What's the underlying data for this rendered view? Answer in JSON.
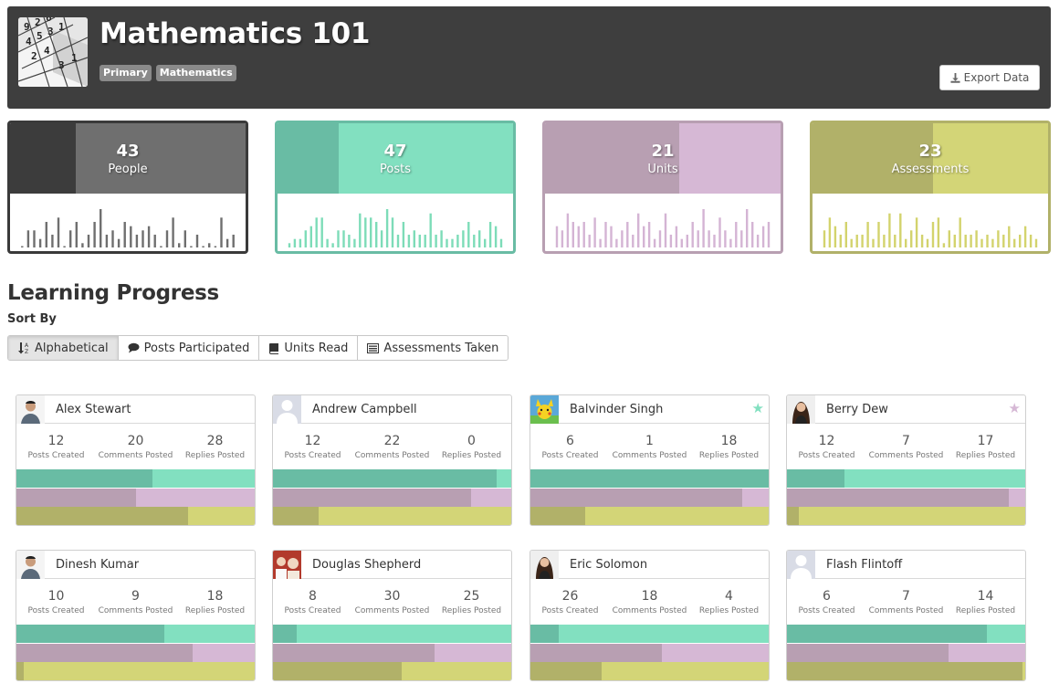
{
  "course": {
    "title": "Mathematics 101",
    "tags": [
      "Primary",
      "Mathematics"
    ],
    "logo_digits": [
      "9",
      "2",
      "6",
      "4",
      "5",
      "3",
      "1",
      "2",
      "4",
      "3",
      "1"
    ]
  },
  "export_label": "Export Data",
  "stats": [
    {
      "value": "43",
      "label": "People",
      "dark": "#3c3c3c",
      "light": "#6f6f6f",
      "border": "#3a3a3a",
      "bar": "#6f6f6f",
      "dark_fraction": 0.28,
      "spark": [
        0,
        4,
        4,
        2,
        6,
        3,
        7,
        0,
        4,
        6,
        1,
        3,
        6,
        9,
        3,
        4,
        2,
        6,
        5,
        3,
        4,
        5,
        3,
        0,
        4,
        7,
        1,
        4,
        0,
        3,
        0,
        1,
        0,
        7,
        2,
        3
      ]
    },
    {
      "value": "47",
      "label": "Posts",
      "dark": "#69bca4",
      "light": "#82e0c0",
      "border": "#69bca4",
      "bar": "#7ddcb8",
      "dark_fraction": 0.26,
      "spark": [
        1,
        2,
        2,
        4,
        5,
        7,
        7,
        2,
        1,
        4,
        4,
        3,
        2,
        8,
        7,
        7,
        6,
        4,
        9,
        7,
        3,
        6,
        3,
        4,
        3,
        3,
        8,
        3,
        4,
        2,
        2,
        3,
        4,
        6,
        3,
        4,
        2,
        6,
        5,
        2
      ]
    },
    {
      "value": "21",
      "label": "Units",
      "dark": "#b89fb2",
      "light": "#d6b8d5",
      "border": "#b89fb2",
      "bar": "#d4b4d4",
      "dark_fraction": 0.57,
      "spark": [
        5,
        4,
        8,
        6,
        5,
        6,
        3,
        7,
        2,
        6,
        5,
        2,
        4,
        6,
        3,
        8,
        5,
        6,
        2,
        4,
        8,
        3,
        5,
        2,
        3,
        6,
        4,
        9,
        4,
        3,
        7,
        4,
        2,
        6,
        4,
        9,
        6,
        3,
        5,
        6
      ]
    },
    {
      "value": "23",
      "label": "Assessments",
      "dark": "#b1b169",
      "light": "#d3d577",
      "border": "#b1b169",
      "bar": "#d3d36d",
      "dark_fraction": 0.51,
      "spark": [
        4,
        7,
        5,
        3,
        6,
        2,
        3,
        3,
        6,
        2,
        6,
        3,
        8,
        3,
        8,
        2,
        4,
        7,
        3,
        2,
        6,
        7,
        1,
        4,
        3,
        7,
        3,
        3,
        4,
        2,
        3,
        2,
        4,
        3,
        5,
        2,
        3,
        5,
        3,
        2
      ]
    }
  ],
  "section_title": "Learning Progress",
  "sort_by_label": "Sort By",
  "sort_buttons": [
    {
      "label": "Alphabetical",
      "icon": "sort-alpha-icon",
      "active": true
    },
    {
      "label": "Posts Participated",
      "icon": "comment-icon",
      "active": false
    },
    {
      "label": "Units Read",
      "icon": "book-icon",
      "active": false
    },
    {
      "label": "Assessments Taken",
      "icon": "list-icon",
      "active": false
    }
  ],
  "stat_labels": [
    "Posts Created",
    "Comments Posted",
    "Replies Posted"
  ],
  "progress_colors": {
    "posts": {
      "dark": "#69bca4",
      "light": "#82e0c0"
    },
    "units": {
      "dark": "#b89fb2",
      "light": "#d6b8d5"
    },
    "assessments": {
      "dark": "#b1b169",
      "light": "#d3d577"
    }
  },
  "students": [
    {
      "name": "Alex Stewart",
      "avatar": "person-photo",
      "star": null,
      "values": [
        "12",
        "20",
        "28"
      ],
      "progress": [
        0.57,
        0.5,
        0.72
      ]
    },
    {
      "name": "Andrew Campbell",
      "avatar": "placeholder",
      "star": null,
      "values": [
        "12",
        "22",
        "0"
      ],
      "progress": [
        0.94,
        0.83,
        0.19
      ]
    },
    {
      "name": "Balvinder Singh",
      "avatar": "pikachu",
      "star": "#82e0c0",
      "values": [
        "6",
        "1",
        "18"
      ],
      "progress": [
        1.0,
        0.89,
        0.23
      ]
    },
    {
      "name": "Berry Dew",
      "avatar": "woman-photo",
      "star": "#d6b8d5",
      "values": [
        "12",
        "7",
        "17"
      ],
      "progress": [
        0.24,
        0.93,
        0.05
      ]
    },
    {
      "name": "Dinesh Kumar",
      "avatar": "person-photo",
      "star": null,
      "values": [
        "10",
        "9",
        "18"
      ],
      "progress": [
        0.62,
        0.74,
        0.03
      ]
    },
    {
      "name": "Douglas Shepherd",
      "avatar": "group-photo",
      "star": null,
      "values": [
        "8",
        "30",
        "25"
      ],
      "progress": [
        0.1,
        0.68,
        0.54
      ]
    },
    {
      "name": "Eric Solomon",
      "avatar": "woman-photo",
      "star": null,
      "values": [
        "26",
        "18",
        "4"
      ],
      "progress": [
        0.12,
        0.55,
        0.3
      ]
    },
    {
      "name": "Flash Flintoff",
      "avatar": "placeholder",
      "star": null,
      "values": [
        "6",
        "7",
        "14"
      ],
      "progress": [
        0.84,
        0.68,
        0.99
      ]
    }
  ]
}
